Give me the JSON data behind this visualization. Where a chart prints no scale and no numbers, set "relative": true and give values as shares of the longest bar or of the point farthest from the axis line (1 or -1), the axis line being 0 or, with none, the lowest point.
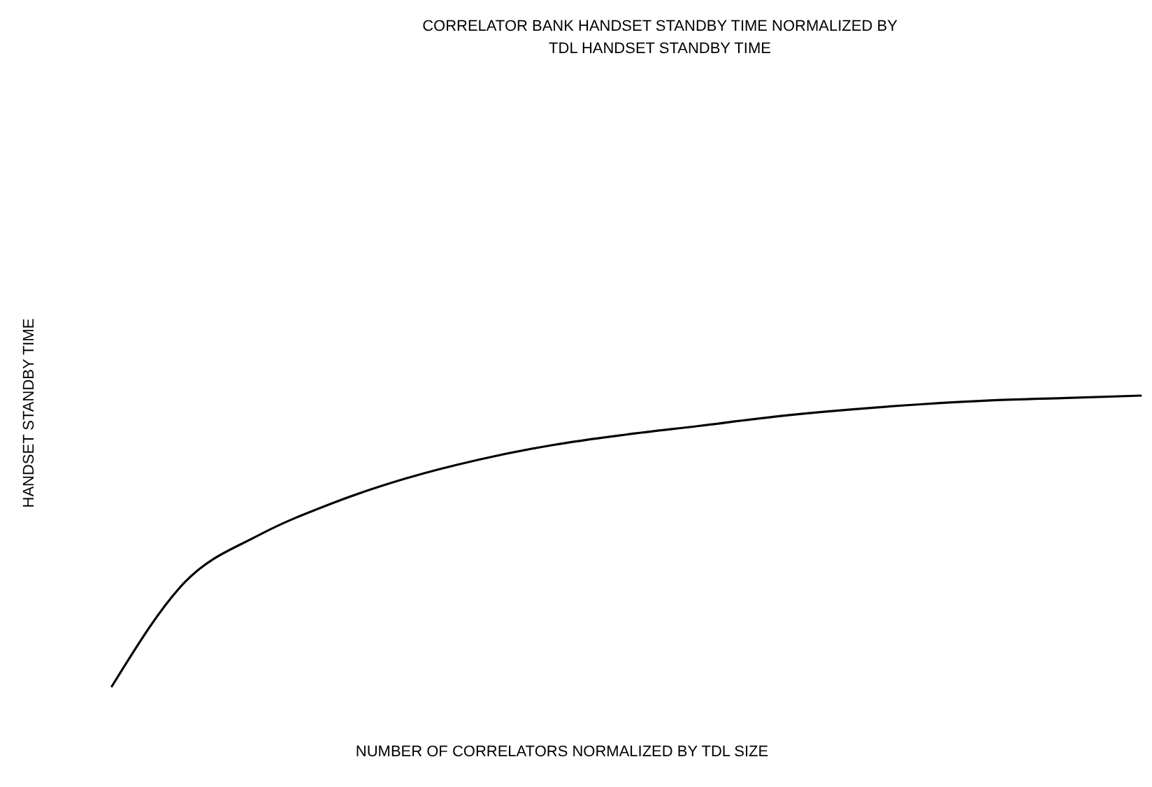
{
  "chart_data": {
    "type": "line",
    "title": "CORRELATOR BANK HANDSET STANDBY TIME NORMALIZED BY",
    "subtitle": "TDL HANDSET STANDBY TIME",
    "xlabel": "NUMBER OF CORRELATORS NORMALIZED BY TDL SIZE",
    "ylabel": "HANDSET STANDBY TIME",
    "relative": true,
    "categories": [
      null,
      null,
      null,
      null,
      null,
      null,
      null,
      null,
      null,
      null,
      null,
      null,
      null,
      null,
      null
    ],
    "series": [
      {
        "color": "#000000",
        "values": [
          0,
          0.36,
          0.52,
          0.63,
          0.715,
          0.78,
          0.83,
          0.866,
          0.896,
          0.927,
          0.951,
          0.97,
          0.984,
          0.992,
          1
        ]
      }
    ],
    "marker": "none",
    "line_style": "solid"
  }
}
